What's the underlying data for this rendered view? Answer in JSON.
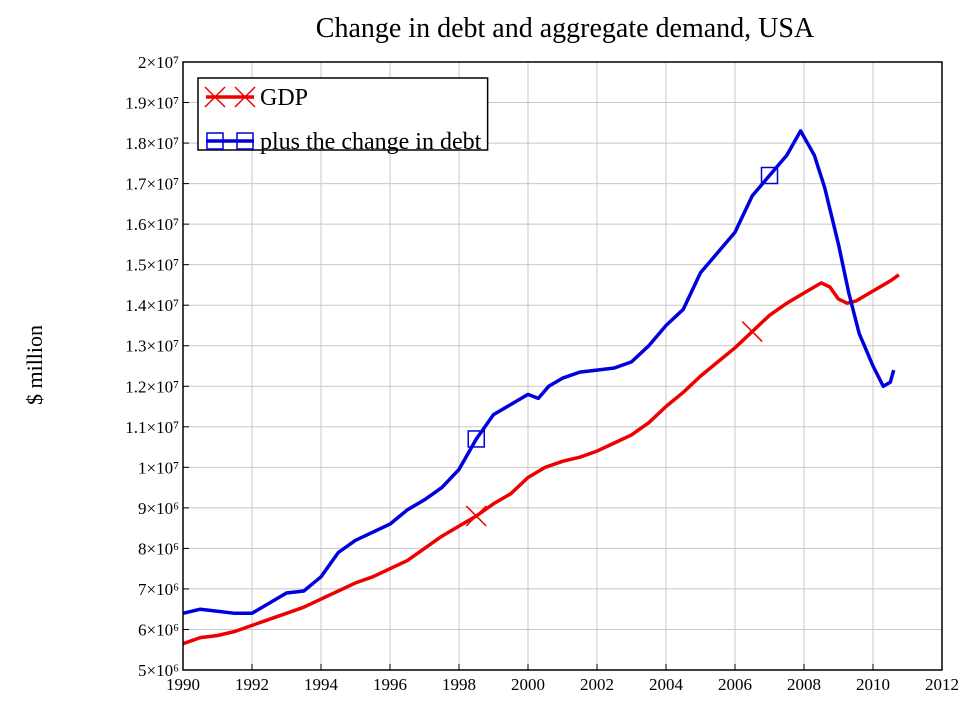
{
  "chart_data": {
    "type": "line",
    "title": "Change in debt and aggregate demand, USA",
    "y_label": "$ million",
    "grid": true,
    "legend": "upper left",
    "xlim": [
      1990,
      2012
    ],
    "xticks": [
      1990,
      1992,
      1994,
      1996,
      1998,
      2000,
      2002,
      2004,
      2006,
      2008,
      2010,
      2012
    ],
    "ylim": [
      5000000,
      20000000
    ],
    "yticks": [
      {
        "value": 5000000,
        "label": "5×10⁶"
      },
      {
        "value": 6000000,
        "label": "6×10⁶"
      },
      {
        "value": 7000000,
        "label": "7×10⁶"
      },
      {
        "value": 8000000,
        "label": "8×10⁶"
      },
      {
        "value": 9000000,
        "label": "9×10⁶"
      },
      {
        "value": 10000000,
        "label": "1×10⁷"
      },
      {
        "value": 11000000,
        "label": "1.1×10⁷"
      },
      {
        "value": 12000000,
        "label": "1.2×10⁷"
      },
      {
        "value": 13000000,
        "label": "1.3×10⁷"
      },
      {
        "value": 14000000,
        "label": "1.4×10⁷"
      },
      {
        "value": 15000000,
        "label": "1.5×10⁷"
      },
      {
        "value": 16000000,
        "label": "1.6×10⁷"
      },
      {
        "value": 17000000,
        "label": "1.7×10⁷"
      },
      {
        "value": 18000000,
        "label": "1.8×10⁷"
      },
      {
        "value": 19000000,
        "label": "1.9×10⁷"
      },
      {
        "value": 20000000,
        "label": "2×10⁷"
      }
    ],
    "series": [
      {
        "name": "GDP",
        "color": "#ee0000",
        "marker": "x",
        "x": [
          1990,
          1990.5,
          1991,
          1991.5,
          1992,
          1992.5,
          1993,
          1993.5,
          1994,
          1994.5,
          1995,
          1995.5,
          1996,
          1996.5,
          1997,
          1997.5,
          1998,
          1998.5,
          1999,
          1999.5,
          2000,
          2000.5,
          2001,
          2001.5,
          2002,
          2002.5,
          2003,
          2003.5,
          2004,
          2004.5,
          2005,
          2005.5,
          2006,
          2006.5,
          2007,
          2007.5,
          2008,
          2008.5,
          2008.75,
          2009,
          2009.25,
          2009.5,
          2010,
          2010.5,
          2010.75
        ],
        "values": [
          5650000,
          5800000,
          5850000,
          5950000,
          6100000,
          6250000,
          6400000,
          6550000,
          6750000,
          6950000,
          7150000,
          7300000,
          7500000,
          7700000,
          8000000,
          8300000,
          8550000,
          8800000,
          9100000,
          9350000,
          9750000,
          10000000,
          10150000,
          10250000,
          10400000,
          10600000,
          10800000,
          11100000,
          11500000,
          11850000,
          12250000,
          12600000,
          12950000,
          13350000,
          13750000,
          14050000,
          14300000,
          14550000,
          14450000,
          14150000,
          14050000,
          14100000,
          14350000,
          14600000,
          14750000
        ]
      },
      {
        "name": "plus the change in debt",
        "color": "#0000dd",
        "marker": "square",
        "x": [
          1990,
          1990.5,
          1991,
          1991.5,
          1992,
          1992.5,
          1993,
          1993.5,
          1994,
          1994.5,
          1995,
          1995.5,
          1996,
          1996.5,
          1997,
          1997.5,
          1998,
          1998.5,
          1999,
          1999.5,
          2000,
          2000.3,
          2000.6,
          2001,
          2001.5,
          2002,
          2002.5,
          2003,
          2003.5,
          2004,
          2004.5,
          2005,
          2005.5,
          2006,
          2006.5,
          2007,
          2007.5,
          2007.9,
          2008.3,
          2008.6,
          2009,
          2009.3,
          2009.6,
          2010,
          2010.3,
          2010.5,
          2010.6
        ],
        "values": [
          6400000,
          6500000,
          6450000,
          6400000,
          6400000,
          6650000,
          6900000,
          6950000,
          7300000,
          7900000,
          8200000,
          8400000,
          8600000,
          8950000,
          9200000,
          9500000,
          9950000,
          10700000,
          11300000,
          11550000,
          11800000,
          11700000,
          12000000,
          12200000,
          12350000,
          12400000,
          12450000,
          12600000,
          13000000,
          13500000,
          13900000,
          14800000,
          15300000,
          15800000,
          16700000,
          17200000,
          17700000,
          18300000,
          17700000,
          16900000,
          15500000,
          14300000,
          13300000,
          12500000,
          12000000,
          12100000,
          12400000
        ]
      }
    ]
  }
}
